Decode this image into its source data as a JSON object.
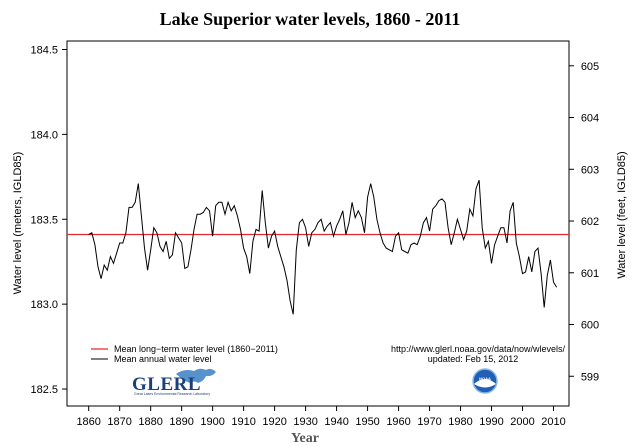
{
  "chart_data": {
    "type": "line",
    "title": "Lake Superior water levels, 1860 - 2011",
    "xlabel": "Year",
    "ylabel": "Water level (meters, IGLD85)",
    "ylabel_right": "Water level (feet, IGLD85)",
    "xlim": [
      1853,
      2015
    ],
    "ylim": [
      182.4,
      184.55
    ],
    "x_ticks": [
      1860,
      1870,
      1880,
      1890,
      1900,
      1910,
      1920,
      1930,
      1940,
      1950,
      1960,
      1970,
      1980,
      1990,
      2000,
      2010
    ],
    "y_ticks": [
      182.5,
      183.0,
      183.5,
      184.0,
      184.5
    ],
    "y_tick_labels": [
      "182.5",
      "183.0",
      "183.5",
      "184.0",
      "184.5"
    ],
    "y_ticks_right": [
      599,
      600,
      601,
      602,
      603,
      604,
      605
    ],
    "mean_level": 183.41,
    "series": [
      {
        "name": "Mean annual water level",
        "color": "#000000",
        "x": [
          1860,
          1861,
          1862,
          1863,
          1864,
          1865,
          1866,
          1867,
          1868,
          1869,
          1870,
          1871,
          1872,
          1873,
          1874,
          1875,
          1876,
          1877,
          1878,
          1879,
          1880,
          1881,
          1882,
          1883,
          1884,
          1885,
          1886,
          1887,
          1888,
          1889,
          1890,
          1891,
          1892,
          1893,
          1894,
          1895,
          1896,
          1897,
          1898,
          1899,
          1900,
          1901,
          1902,
          1903,
          1904,
          1905,
          1906,
          1907,
          1908,
          1909,
          1910,
          1911,
          1912,
          1913,
          1914,
          1915,
          1916,
          1917,
          1918,
          1919,
          1920,
          1921,
          1922,
          1923,
          1924,
          1925,
          1926,
          1927,
          1928,
          1929,
          1930,
          1931,
          1932,
          1933,
          1934,
          1935,
          1936,
          1937,
          1938,
          1939,
          1940,
          1941,
          1942,
          1943,
          1944,
          1945,
          1946,
          1947,
          1948,
          1949,
          1950,
          1951,
          1952,
          1953,
          1954,
          1955,
          1956,
          1957,
          1958,
          1959,
          1960,
          1961,
          1962,
          1963,
          1964,
          1965,
          1966,
          1967,
          1968,
          1969,
          1970,
          1971,
          1972,
          1973,
          1974,
          1975,
          1976,
          1977,
          1978,
          1979,
          1980,
          1981,
          1982,
          1983,
          1984,
          1985,
          1986,
          1987,
          1988,
          1989,
          1990,
          1991,
          1992,
          1993,
          1994,
          1995,
          1996,
          1997,
          1998,
          1999,
          2000,
          2001,
          2002,
          2003,
          2004,
          2005,
          2006,
          2007,
          2008,
          2009,
          2010,
          2011
        ],
        "values": [
          183.41,
          183.42,
          183.35,
          183.22,
          183.15,
          183.23,
          183.2,
          183.28,
          183.24,
          183.3,
          183.36,
          183.36,
          183.42,
          183.57,
          183.57,
          183.6,
          183.71,
          183.52,
          183.33,
          183.2,
          183.32,
          183.45,
          183.42,
          183.34,
          183.31,
          183.37,
          183.27,
          183.29,
          183.42,
          183.39,
          183.36,
          183.21,
          183.22,
          183.32,
          183.44,
          183.53,
          183.53,
          183.54,
          183.57,
          183.55,
          183.4,
          183.58,
          183.6,
          183.6,
          183.53,
          183.6,
          183.55,
          183.58,
          183.52,
          183.44,
          183.33,
          183.28,
          183.18,
          183.37,
          183.44,
          183.43,
          183.67,
          183.48,
          183.33,
          183.4,
          183.43,
          183.34,
          183.28,
          183.22,
          183.14,
          183.02,
          182.94,
          183.32,
          183.48,
          183.5,
          183.45,
          183.34,
          183.42,
          183.44,
          183.48,
          183.5,
          183.43,
          183.46,
          183.48,
          183.4,
          183.46,
          183.5,
          183.55,
          183.41,
          183.48,
          183.6,
          183.51,
          183.55,
          183.51,
          183.42,
          183.63,
          183.71,
          183.63,
          183.5,
          183.42,
          183.36,
          183.33,
          183.32,
          183.31,
          183.4,
          183.42,
          183.32,
          183.31,
          183.3,
          183.35,
          183.36,
          183.35,
          183.4,
          183.48,
          183.51,
          183.43,
          183.56,
          183.58,
          183.61,
          183.62,
          183.6,
          183.45,
          183.35,
          183.42,
          183.5,
          183.44,
          183.38,
          183.43,
          183.56,
          183.52,
          183.68,
          183.73,
          183.45,
          183.33,
          183.37,
          183.24,
          183.35,
          183.4,
          183.45,
          183.45,
          183.36,
          183.55,
          183.6,
          183.36,
          183.28,
          183.18,
          183.19,
          183.28,
          183.19,
          183.31,
          183.33,
          183.18,
          182.98,
          183.17,
          183.26,
          183.13,
          183.1
        ]
      }
    ],
    "legend": [
      {
        "label": "Mean long−term water level (1860−2011)",
        "color": "#e8262f"
      },
      {
        "label": "Mean annual water level",
        "color": "#000000"
      }
    ],
    "legend_position": "bottom-left",
    "grid": false
  },
  "annotations": {
    "url": "http://www.glerl.noaa.gov/data/now/wlevels/",
    "updated": "updated: Feb 15, 2012"
  },
  "logo": {
    "glerl_text": "GLERL",
    "glerl_sub": "Great Lakes Environmental Research Laboratory",
    "noaa_text": "NOAA"
  }
}
